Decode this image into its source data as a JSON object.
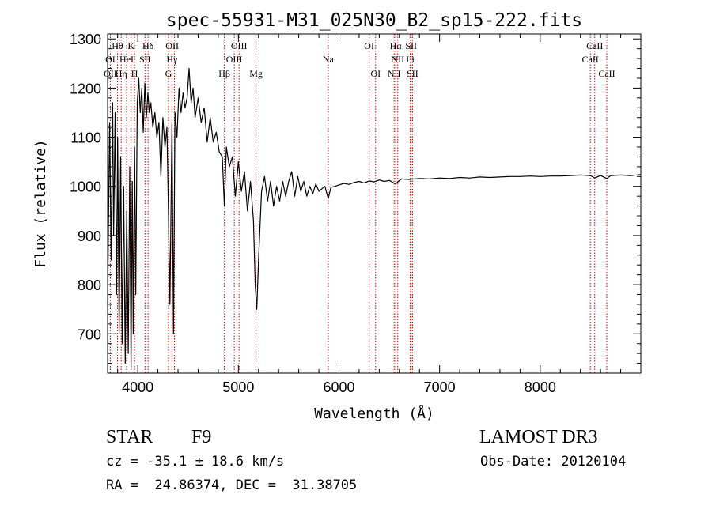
{
  "chart_data": {
    "type": "line",
    "title": "spec-55931-M31_025N30_B2_sp15-222.fits",
    "xlabel": "Wavelength (Å)",
    "ylabel": "Flux (relative)",
    "xlim": [
      3700,
      9000
    ],
    "ylim": [
      620,
      1310
    ],
    "x_ticks": [
      4000,
      5000,
      6000,
      7000,
      8000
    ],
    "y_ticks": [
      700,
      800,
      900,
      1000,
      1100,
      1200,
      1300
    ],
    "series": [
      {
        "name": "flux",
        "x": [
          3700,
          3720,
          3735,
          3750,
          3760,
          3775,
          3790,
          3800,
          3815,
          3830,
          3845,
          3860,
          3875,
          3890,
          3905,
          3920,
          3933,
          3945,
          3955,
          3968,
          3980,
          3995,
          4010,
          4025,
          4040,
          4055,
          4070,
          4085,
          4100,
          4115,
          4130,
          4150,
          4170,
          4190,
          4210,
          4230,
          4250,
          4270,
          4290,
          4305,
          4320,
          4340,
          4355,
          4370,
          4390,
          4410,
          4430,
          4450,
          4470,
          4490,
          4510,
          4530,
          4550,
          4570,
          4600,
          4630,
          4660,
          4690,
          4720,
          4750,
          4780,
          4810,
          4840,
          4861,
          4880,
          4910,
          4940,
          4970,
          5000,
          5030,
          5060,
          5090,
          5120,
          5150,
          5167,
          5183,
          5200,
          5230,
          5260,
          5290,
          5320,
          5350,
          5380,
          5410,
          5440,
          5470,
          5500,
          5530,
          5560,
          5590,
          5620,
          5650,
          5680,
          5710,
          5740,
          5770,
          5800,
          5830,
          5860,
          5893,
          5920,
          5960,
          6000,
          6050,
          6100,
          6150,
          6200,
          6250,
          6300,
          6350,
          6400,
          6450,
          6500,
          6563,
          6620,
          6700,
          6800,
          6900,
          7000,
          7100,
          7200,
          7300,
          7400,
          7500,
          7600,
          7700,
          7800,
          7900,
          8000,
          8100,
          8200,
          8300,
          8400,
          8500,
          8542,
          8600,
          8662,
          8700,
          8800,
          8900,
          9000
        ],
        "y": [
          760,
          1130,
          850,
          1170,
          900,
          1150,
          780,
          1100,
          700,
          1060,
          680,
          1000,
          640,
          950,
          660,
          1040,
          630,
          1010,
          700,
          1080,
          780,
          1170,
          1220,
          1150,
          1200,
          1110,
          1210,
          1140,
          1190,
          1150,
          1170,
          1120,
          1150,
          1100,
          1130,
          1020,
          1140,
          1080,
          1120,
          950,
          760,
          1130,
          700,
          1150,
          1100,
          1200,
          1150,
          1190,
          1160,
          1180,
          1240,
          1170,
          1200,
          1140,
          1180,
          1130,
          1160,
          1090,
          1140,
          1090,
          1110,
          1070,
          1060,
          960,
          1080,
          1040,
          1060,
          980,
          1050,
          990,
          1030,
          950,
          1010,
          930,
          800,
          750,
          850,
          990,
          1020,
          970,
          1010,
          960,
          1000,
          970,
          1010,
          980,
          1010,
          1030,
          980,
          1020,
          990,
          1010,
          980,
          1000,
          985,
          1005,
          990,
          995,
          1000,
          975,
          998,
          1000,
          1003,
          1006,
          1004,
          1008,
          1010,
          1007,
          1011,
          1009,
          1013,
          1010,
          1012,
          1005,
          1015,
          1014,
          1016,
          1015,
          1017,
          1016,
          1018,
          1017,
          1019,
          1018,
          1019,
          1020,
          1020,
          1021,
          1020,
          1021,
          1021,
          1022,
          1023,
          1022,
          1017,
          1022,
          1016,
          1022,
          1023,
          1022,
          1024
        ]
      }
    ],
    "line_markers": [
      {
        "label": "Hθ",
        "x": 3798,
        "row": 1
      },
      {
        "label": "K",
        "x": 3934,
        "row": 1
      },
      {
        "label": "Hδ",
        "x": 4102,
        "row": 1
      },
      {
        "label": "OII",
        "x": 4342,
        "row": 1
      },
      {
        "label": "OIII",
        "x": 5007,
        "row": 1
      },
      {
        "label": "OI",
        "x": 6300,
        "row": 1
      },
      {
        "label": "Hα",
        "x": 6563,
        "row": 1
      },
      {
        "label": "SII",
        "x": 6717,
        "row": 1
      },
      {
        "label": "CaII",
        "x": 8542,
        "row": 1
      },
      {
        "label": "OI",
        "x": 3727,
        "row": 2
      },
      {
        "label": "HeI",
        "x": 3889,
        "row": 2
      },
      {
        "label": "SII",
        "x": 4072,
        "row": 2
      },
      {
        "label": "Hγ",
        "x": 4340,
        "row": 2
      },
      {
        "label": "OIII",
        "x": 4959,
        "row": 2
      },
      {
        "label": "Na",
        "x": 5893,
        "row": 2
      },
      {
        "label": "NII",
        "x": 6584,
        "row": 2
      },
      {
        "label": "Li",
        "x": 6708,
        "row": 2
      },
      {
        "label": "CaII",
        "x": 8498,
        "row": 2
      },
      {
        "label": "OII",
        "x": 3727,
        "row": 3
      },
      {
        "label": "Hη",
        "x": 3835,
        "row": 3
      },
      {
        "label": "H",
        "x": 3968,
        "row": 3
      },
      {
        "label": "G",
        "x": 4305,
        "row": 3
      },
      {
        "label": "Hβ",
        "x": 4861,
        "row": 3
      },
      {
        "label": "Mg",
        "x": 5175,
        "row": 3
      },
      {
        "label": "OI",
        "x": 6364,
        "row": 3
      },
      {
        "label": "NII",
        "x": 6548,
        "row": 3
      },
      {
        "label": "SII",
        "x": 6731,
        "row": 3
      },
      {
        "label": "CaII",
        "x": 8662,
        "row": 3
      }
    ],
    "line_positions": [
      3727,
      3798,
      3835,
      3889,
      3934,
      3968,
      4072,
      4102,
      4305,
      4340,
      4364,
      4861,
      4959,
      5007,
      5175,
      5893,
      6300,
      6364,
      6548,
      6563,
      6584,
      6708,
      6717,
      6731,
      8498,
      8542,
      8662
    ],
    "colors": {
      "axis": "#000000",
      "spectrum": "#000000",
      "marker": "#cc0000"
    }
  },
  "info": {
    "class": "STAR",
    "subclass": "F9",
    "survey": "LAMOST DR3",
    "redshift": "cz = -35.1 ± 18.6 km/s",
    "obs_date": "Obs-Date: 20120104",
    "coords": "RA =  24.86374, DEC =  31.38705"
  }
}
